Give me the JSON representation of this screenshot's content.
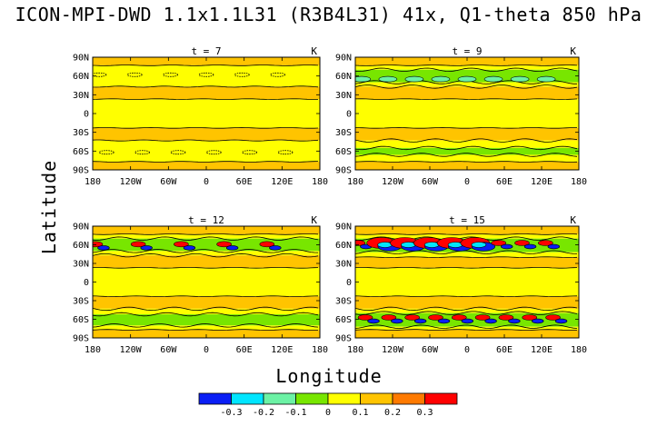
{
  "chart_data": [
    {
      "type": "contour",
      "title": "ICON-MPI-DWD 1.1x1.1L31 (R3B4L31) 41x, Q1-theta 850 hPa",
      "xlabel": "Longitude",
      "ylabel": "Latitude",
      "units": "K",
      "xlim": [
        -180,
        180
      ],
      "ylim": [
        -90,
        90
      ],
      "x_ticks": [
        "180",
        "120W",
        "60W",
        "0",
        "60E",
        "120E",
        "180"
      ],
      "y_ticks": [
        "90N",
        "60N",
        "30N",
        "0",
        "30S",
        "60S",
        "90S"
      ],
      "colorbar": {
        "levels": [
          "-0.3",
          "-0.2",
          "-0.1",
          "0",
          "0.1",
          "0.2",
          "0.3"
        ],
        "colors": [
          "#0a1ef5",
          "#00e5ff",
          "#6cf2a5",
          "#78e600",
          "#ffff00",
          "#ffc400",
          "#ff7a00",
          "#ff0000"
        ]
      },
      "panels": [
        {
          "time_label": "t = 7",
          "units": "K",
          "bands": [
            {
              "lat_from": 90,
              "lat_to": 77,
              "value": "0.1"
            },
            {
              "lat_from": 77,
              "lat_to": 43,
              "value": "0"
            },
            {
              "lat_from": 43,
              "lat_to": 23,
              "value": "0.1"
            },
            {
              "lat_from": 23,
              "lat_to": -23,
              "value": "0"
            },
            {
              "lat_from": -23,
              "lat_to": -43,
              "value": "0.1"
            },
            {
              "lat_from": -43,
              "lat_to": -77,
              "value": "0"
            },
            {
              "lat_from": -77,
              "lat_to": -90,
              "value": "0.1"
            }
          ],
          "anomaly_lat": [
            62,
            -62
          ],
          "anomaly_strength": "weak"
        },
        {
          "time_label": "t = 9",
          "units": "K",
          "bands": [
            {
              "lat_from": 90,
              "lat_to": 77,
              "value": "0.1"
            },
            {
              "lat_from": 77,
              "lat_to": 70,
              "value": "0"
            },
            {
              "lat_from": 70,
              "lat_to": 50,
              "value": "-0.1"
            },
            {
              "lat_from": 50,
              "lat_to": 43,
              "value": "0"
            },
            {
              "lat_from": 43,
              "lat_to": 23,
              "value": "0.1"
            },
            {
              "lat_from": 23,
              "lat_to": -23,
              "value": "0"
            },
            {
              "lat_from": -23,
              "lat_to": -43,
              "value": "0.1"
            },
            {
              "lat_from": -43,
              "lat_to": -55,
              "value": "0"
            },
            {
              "lat_from": -55,
              "lat_to": -66,
              "value": "-0.1"
            },
            {
              "lat_from": -66,
              "lat_to": -77,
              "value": "0"
            },
            {
              "lat_from": -77,
              "lat_to": -90,
              "value": "0.1"
            }
          ],
          "anomaly_lat": [
            55
          ],
          "anomaly_strength": "moderate"
        },
        {
          "time_label": "t = 12",
          "units": "K",
          "bands": [
            {
              "lat_from": 90,
              "lat_to": 77,
              "value": "0.1"
            },
            {
              "lat_from": 77,
              "lat_to": 70,
              "value": "0"
            },
            {
              "lat_from": 70,
              "lat_to": 50,
              "value": "-0.1"
            },
            {
              "lat_from": 50,
              "lat_to": 43,
              "value": "0"
            },
            {
              "lat_from": 43,
              "lat_to": 23,
              "value": "0.1"
            },
            {
              "lat_from": 23,
              "lat_to": -23,
              "value": "0"
            },
            {
              "lat_from": -23,
              "lat_to": -43,
              "value": "0.1"
            },
            {
              "lat_from": -43,
              "lat_to": -52,
              "value": "0"
            },
            {
              "lat_from": -52,
              "lat_to": -70,
              "value": "-0.1"
            },
            {
              "lat_from": -70,
              "lat_to": -77,
              "value": "0"
            },
            {
              "lat_from": -77,
              "lat_to": -90,
              "value": "0.1"
            }
          ],
          "anomaly_lat": [
            58
          ],
          "anomaly_strength": "strong"
        },
        {
          "time_label": "t = 15",
          "units": "K",
          "bands": [
            {
              "lat_from": 90,
              "lat_to": 77,
              "value": "0.1"
            },
            {
              "lat_from": 77,
              "lat_to": 70,
              "value": "0"
            },
            {
              "lat_from": 70,
              "lat_to": 48,
              "value": "-0.1"
            },
            {
              "lat_from": 48,
              "lat_to": 40,
              "value": "0"
            },
            {
              "lat_from": 40,
              "lat_to": 23,
              "value": "0.1"
            },
            {
              "lat_from": 23,
              "lat_to": -23,
              "value": "0"
            },
            {
              "lat_from": -23,
              "lat_to": -43,
              "value": "0.1"
            },
            {
              "lat_from": -43,
              "lat_to": -50,
              "value": "0"
            },
            {
              "lat_from": -50,
              "lat_to": -72,
              "value": "-0.1"
            },
            {
              "lat_from": -72,
              "lat_to": -77,
              "value": "0"
            },
            {
              "lat_from": -77,
              "lat_to": -90,
              "value": "0.1"
            }
          ],
          "anomaly_lat": [
            60,
            -60
          ],
          "anomaly_strength": "very strong"
        }
      ]
    }
  ]
}
